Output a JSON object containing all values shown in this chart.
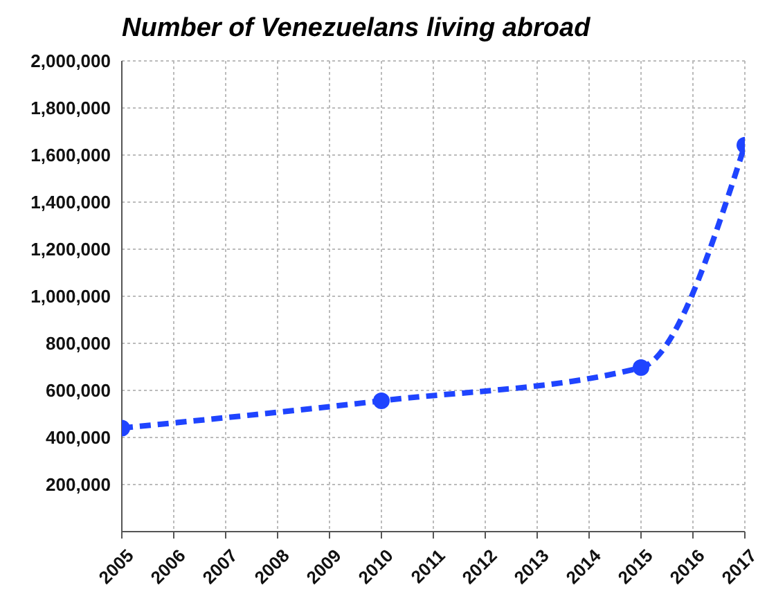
{
  "chart_data": {
    "type": "line",
    "title": "Number of Venezuelans living abroad",
    "x": [
      2005,
      2010,
      2015,
      2017
    ],
    "series": [
      {
        "color": "#1f44ff",
        "values": [
          440000,
          556000,
          697000,
          1642000
        ]
      }
    ],
    "xlim": [
      2005,
      2017
    ],
    "xticks": [
      2005,
      2006,
      2007,
      2008,
      2009,
      2010,
      2011,
      2012,
      2013,
      2014,
      2015,
      2016,
      2017
    ],
    "ylim": [
      0,
      2000000
    ],
    "yticks": [
      {
        "value": 200000,
        "label": "200,000"
      },
      {
        "value": 400000,
        "label": "400,000"
      },
      {
        "value": 600000,
        "label": "600,000"
      },
      {
        "value": 800000,
        "label": "800,000"
      },
      {
        "value": 1000000,
        "label": "1,000,000"
      },
      {
        "value": 1200000,
        "label": "1,200,000"
      },
      {
        "value": 1400000,
        "label": "1,400,000"
      },
      {
        "value": 1600000,
        "label": "1,600,000"
      },
      {
        "value": 1800000,
        "label": "1,800,000"
      },
      {
        "value": 2000000,
        "label": "2,000,000"
      }
    ],
    "grid": true,
    "marker": "circle",
    "line_style": "dashed",
    "legend": false
  }
}
